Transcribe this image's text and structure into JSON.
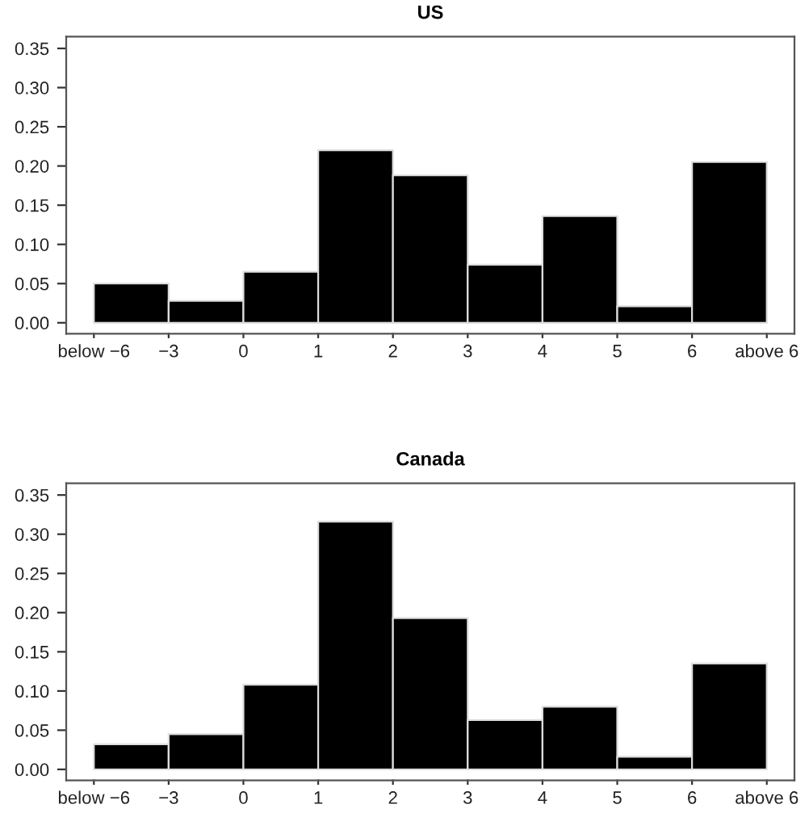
{
  "chart_data": [
    {
      "type": "bar",
      "title": "US",
      "categories": [
        null,
        null,
        null,
        null,
        null,
        null,
        null,
        null,
        null
      ],
      "values": [
        0.05,
        0.028,
        0.065,
        0.22,
        0.188,
        0.074,
        0.136,
        0.021,
        0.205
      ],
      "color": "#000000",
      "annotations": [
        "below −6",
        "−3",
        "0",
        "1",
        "2",
        "3",
        "4",
        "5",
        "6",
        "above 6"
      ],
      "ylim": [
        -0.014,
        0.365
      ],
      "yticks": [
        {
          "value": 0,
          "label": "0.00"
        },
        {
          "value": 0.05,
          "label": "0.05"
        },
        {
          "value": 0.1,
          "label": "0.10"
        },
        {
          "value": 0.15,
          "label": "0.15"
        },
        {
          "value": 0.2,
          "label": "0.20"
        },
        {
          "value": 0.25,
          "label": "0.25"
        },
        {
          "value": 0.3,
          "label": "0.30"
        },
        {
          "value": 0.35,
          "label": "0.35"
        }
      ]
    },
    {
      "type": "bar",
      "title": "Canada",
      "categories": [
        null,
        null,
        null,
        null,
        null,
        null,
        null,
        null,
        null
      ],
      "values": [
        0.032,
        0.045,
        0.108,
        0.316,
        0.193,
        0.063,
        0.08,
        0.016,
        0.135
      ],
      "color": "#000000",
      "annotations": [
        "below −6",
        "−3",
        "0",
        "1",
        "2",
        "3",
        "4",
        "5",
        "6",
        "above 6"
      ],
      "ylim": [
        -0.014,
        0.365
      ],
      "yticks": [
        {
          "value": 0,
          "label": "0.00"
        },
        {
          "value": 0.05,
          "label": "0.05"
        },
        {
          "value": 0.1,
          "label": "0.10"
        },
        {
          "value": 0.15,
          "label": "0.15"
        },
        {
          "value": 0.2,
          "label": "0.20"
        },
        {
          "value": 0.25,
          "label": "0.25"
        },
        {
          "value": 0.3,
          "label": "0.30"
        },
        {
          "value": 0.35,
          "label": "0.35"
        }
      ]
    }
  ]
}
